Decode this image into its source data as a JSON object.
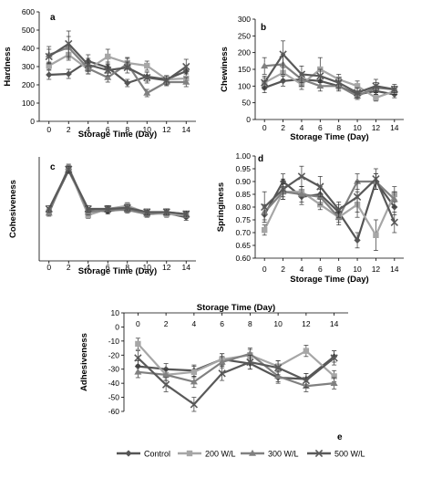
{
  "figure": {
    "legend": [
      {
        "name": "Control",
        "color": "#555555",
        "marker": "diamond"
      },
      {
        "name": "200 W/L",
        "color": "#a6a6a6",
        "marker": "square"
      },
      {
        "name": "300 W/L",
        "color": "#808080",
        "marker": "triangle"
      },
      {
        "name": "500 W/L",
        "color": "#595959",
        "marker": "x"
      }
    ]
  },
  "chart_data": [
    {
      "type": "line",
      "panel": "a",
      "panel_label": "a",
      "xlabel": "Storage Time (Day)",
      "ylabel": "Hardness",
      "x": [
        0,
        2,
        4,
        6,
        8,
        10,
        12,
        14
      ],
      "xticks": [
        "0",
        "2",
        "4",
        "6",
        "8",
        "10",
        "12",
        "14"
      ],
      "ylim": [
        0,
        600
      ],
      "yticks": [
        0,
        100,
        200,
        300,
        400,
        500,
        600
      ],
      "x_axis_position": "bottom",
      "grid": false,
      "series": [
        {
          "name": "Control",
          "values": [
            255,
            260,
            330,
            295,
            210,
            245,
            230,
            275
          ],
          "error": [
            25,
            25,
            35,
            30,
            20,
            25,
            20,
            30
          ]
        },
        {
          "name": "200 W/L",
          "values": [
            305,
            365,
            285,
            355,
            320,
            305,
            230,
            235
          ],
          "error": [
            20,
            30,
            25,
            40,
            30,
            25,
            20,
            25
          ]
        },
        {
          "name": "300 W/L",
          "values": [
            365,
            405,
            290,
            240,
            315,
            155,
            215,
            215
          ],
          "error": [
            45,
            60,
            30,
            25,
            30,
            20,
            20,
            25
          ]
        },
        {
          "name": "500 W/L",
          "values": [
            355,
            425,
            310,
            280,
            295,
            240,
            225,
            300
          ],
          "error": [
            40,
            70,
            35,
            30,
            30,
            30,
            25,
            40
          ]
        }
      ]
    },
    {
      "type": "line",
      "panel": "b",
      "panel_label": "b",
      "xlabel": "Storage Time (Day)",
      "ylabel": "Chewiness",
      "x": [
        0,
        2,
        4,
        6,
        8,
        10,
        12,
        14
      ],
      "xticks": [
        "0",
        "2",
        "4",
        "6",
        "8",
        "10",
        "12",
        "14"
      ],
      "ylim": [
        0,
        300
      ],
      "yticks": [
        0,
        50,
        100,
        150,
        200,
        250,
        300
      ],
      "x_axis_position": "bottom",
      "grid": false,
      "series": [
        {
          "name": "Control",
          "values": [
            95,
            115,
            120,
            115,
            100,
            75,
            85,
            75
          ],
          "error": [
            15,
            15,
            15,
            15,
            10,
            10,
            10,
            10
          ]
        },
        {
          "name": "200 W/L",
          "values": [
            110,
            140,
            105,
            150,
            120,
            100,
            65,
            85
          ],
          "error": [
            15,
            20,
            15,
            35,
            15,
            15,
            10,
            10
          ]
        },
        {
          "name": "300 W/L",
          "values": [
            160,
            165,
            120,
            100,
            100,
            70,
            95,
            90
          ],
          "error": [
            25,
            30,
            20,
            15,
            15,
            10,
            15,
            10
          ]
        },
        {
          "name": "500 W/L",
          "values": [
            110,
            195,
            135,
            130,
            110,
            80,
            100,
            90
          ],
          "error": [
            20,
            40,
            25,
            20,
            15,
            15,
            20,
            15
          ]
        }
      ]
    },
    {
      "type": "line",
      "panel": "c",
      "panel_label": "c",
      "xlabel": "Storage Time (Day)",
      "ylabel": "Cohesiveness",
      "x": [
        0,
        2,
        4,
        6,
        8,
        10,
        12,
        14
      ],
      "xticks": [
        "0",
        "2",
        "4",
        "6",
        "8",
        "10",
        "12",
        "14"
      ],
      "ylim": [
        0,
        1
      ],
      "yticks": [],
      "x_axis_position": "bottom",
      "grid": false,
      "series": [
        {
          "name": "Control",
          "values": [
            0.48,
            0.87,
            0.48,
            0.48,
            0.5,
            0.45,
            0.46,
            0.42
          ],
          "error": [
            0.03,
            0.03,
            0.03,
            0.03,
            0.03,
            0.03,
            0.03,
            0.03
          ]
        },
        {
          "name": "200 W/L",
          "values": [
            0.47,
            0.89,
            0.44,
            0.5,
            0.53,
            0.46,
            0.45,
            0.44
          ],
          "error": [
            0.03,
            0.03,
            0.03,
            0.03,
            0.03,
            0.03,
            0.03,
            0.03
          ]
        },
        {
          "name": "300 W/L",
          "values": [
            0.46,
            0.9,
            0.47,
            0.49,
            0.49,
            0.45,
            0.47,
            0.45
          ],
          "error": [
            0.03,
            0.03,
            0.03,
            0.03,
            0.03,
            0.03,
            0.03,
            0.03
          ]
        },
        {
          "name": "500 W/L",
          "values": [
            0.5,
            0.88,
            0.5,
            0.5,
            0.51,
            0.47,
            0.47,
            0.45
          ],
          "error": [
            0.03,
            0.03,
            0.03,
            0.03,
            0.03,
            0.03,
            0.03,
            0.03
          ]
        }
      ]
    },
    {
      "type": "line",
      "panel": "d",
      "panel_label": "d",
      "xlabel": "Storage Time (Day)",
      "ylabel": "Springiness",
      "x": [
        0,
        2,
        4,
        6,
        8,
        10,
        12,
        14
      ],
      "xticks": [
        "0",
        "2",
        "4",
        "6",
        "8",
        "10",
        "12",
        "14"
      ],
      "ylim": [
        0.6,
        1.0
      ],
      "yticks": [
        0.6,
        0.65,
        0.7,
        0.75,
        0.8,
        0.85,
        0.9,
        0.95,
        1.0
      ],
      "yticklabels": [
        "0.60",
        "0.65",
        "0.70",
        "0.75",
        "0.80",
        "0.85",
        "0.90",
        "0.95",
        "1.00"
      ],
      "x_axis_position": "bottom",
      "grid": false,
      "series": [
        {
          "name": "Control",
          "values": [
            0.77,
            0.9,
            0.84,
            0.85,
            0.78,
            0.67,
            0.9,
            0.8
          ],
          "error": [
            0.03,
            0.03,
            0.03,
            0.03,
            0.03,
            0.03,
            0.03,
            0.03
          ]
        },
        {
          "name": "200 W/L",
          "values": [
            0.71,
            0.86,
            0.86,
            0.81,
            0.76,
            0.81,
            0.69,
            0.85
          ],
          "error": [
            0.02,
            0.02,
            0.02,
            0.02,
            0.02,
            0.05,
            0.06,
            0.03
          ]
        },
        {
          "name": "300 W/L",
          "values": [
            0.78,
            0.86,
            0.85,
            0.84,
            0.76,
            0.9,
            0.9,
            0.83
          ],
          "error": [
            0.03,
            0.03,
            0.03,
            0.03,
            0.03,
            0.03,
            0.03,
            0.03
          ]
        },
        {
          "name": "500 W/L",
          "values": [
            0.8,
            0.87,
            0.92,
            0.88,
            0.79,
            0.84,
            0.91,
            0.74
          ],
          "error": [
            0.06,
            0.04,
            0.04,
            0.04,
            0.03,
            0.06,
            0.04,
            0.04
          ]
        }
      ]
    },
    {
      "type": "line",
      "panel": "e",
      "panel_label": "e",
      "xlabel": "Storage Time (Day)",
      "ylabel": "Adhesiveness",
      "x": [
        0,
        2,
        4,
        6,
        8,
        10,
        12,
        14
      ],
      "xticks": [
        "0",
        "2",
        "4",
        "6",
        "8",
        "10",
        "12",
        "14"
      ],
      "ylim": [
        -60,
        10
      ],
      "yticks": [
        -60,
        -50,
        -40,
        -30,
        -20,
        -10,
        0,
        10
      ],
      "x_axis_position": "top",
      "grid": false,
      "series": [
        {
          "name": "Control",
          "values": [
            -28,
            -30,
            -31,
            -23,
            -26,
            -36,
            -37,
            -21
          ],
          "error": [
            4,
            4,
            4,
            4,
            4,
            4,
            4,
            4
          ]
        },
        {
          "name": "200 W/L",
          "values": [
            -12,
            -34,
            -32,
            -23,
            -20,
            -28,
            -17,
            -35
          ],
          "error": [
            4,
            4,
            4,
            4,
            4,
            4,
            4,
            4
          ]
        },
        {
          "name": "300 W/L",
          "values": [
            -32,
            -34,
            -39,
            -25,
            -19,
            -35,
            -42,
            -40
          ],
          "error": [
            4,
            4,
            4,
            4,
            4,
            4,
            4,
            4
          ]
        },
        {
          "name": "500 W/L",
          "values": [
            -22,
            -41,
            -55,
            -33,
            -25,
            -29,
            -38,
            -22
          ],
          "error": [
            5,
            5,
            5,
            5,
            5,
            5,
            5,
            5
          ]
        }
      ]
    }
  ]
}
